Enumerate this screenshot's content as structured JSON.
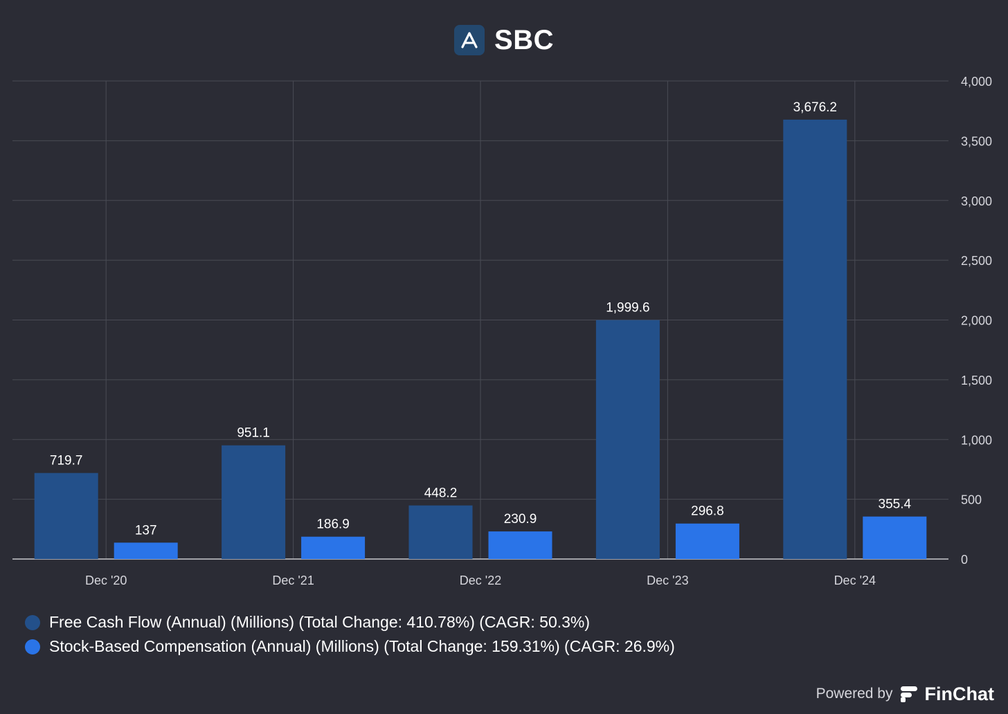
{
  "header": {
    "title": "SBC",
    "logo_icon": "company-logo-icon"
  },
  "chart_data": {
    "type": "bar",
    "title": "SBC",
    "categories": [
      "Dec '20",
      "Dec '21",
      "Dec '22",
      "Dec '23",
      "Dec '24"
    ],
    "series": [
      {
        "name": "Free Cash Flow (Annual) (Millions) (Total Change: 410.78%) (CAGR: 50.3%)",
        "color": "#23508a",
        "values": [
          719.7,
          951.1,
          448.2,
          1999.6,
          3676.2
        ],
        "labels": [
          "719.7",
          "951.1",
          "448.2",
          "1,999.6",
          "3,676.2"
        ]
      },
      {
        "name": "Stock-Based Compensation (Annual) (Millions) (Total Change: 159.31%) (CAGR: 26.9%)",
        "color": "#2a74e8",
        "values": [
          137,
          186.9,
          230.9,
          296.8,
          355.4
        ],
        "labels": [
          "137",
          "186.9",
          "230.9",
          "296.8",
          "355.4"
        ]
      }
    ],
    "ylim": [
      0,
      4000
    ],
    "yticks": [
      0,
      500,
      1000,
      1500,
      2000,
      2500,
      3000,
      3500,
      4000
    ],
    "ytick_labels": [
      "0",
      "500",
      "1,000",
      "1,500",
      "2,000",
      "2,500",
      "3,000",
      "3,500",
      "4,000"
    ],
    "y_axis_side": "right",
    "grid": true,
    "legend_placement": "bottom-left"
  },
  "footer": {
    "powered_by": "Powered by",
    "brand": "FinChat",
    "brand_icon": "finchat-logo-icon"
  }
}
